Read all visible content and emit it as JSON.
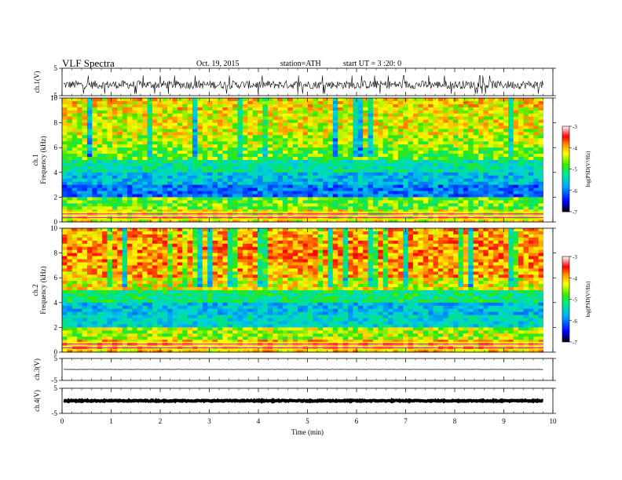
{
  "header": {
    "title": "VLF Spectra",
    "date": "Oct. 19, 2015",
    "station": "station=ATH",
    "start": "start  UT =   3  :20: 0"
  },
  "chart_data": [
    {
      "type": "line",
      "panel": "ch1-waveform",
      "ylabel": "ch.1(V)",
      "ylim": [
        -5,
        5
      ],
      "yticks": [
        "5",
        "-5"
      ],
      "xlim": [
        0,
        10
      ],
      "trace_span_min": [
        0,
        9.8
      ],
      "series": [
        {
          "values_note_level_V": -1.0,
          "amplitude_V": 1.5,
          "color": "#000000"
        }
      ]
    },
    {
      "type": "heatmap",
      "panel": "ch1-spectrogram",
      "ylabel_line1": "ch.1",
      "ylabel_line2": "Frequency (kHz)",
      "ylim": [
        0,
        10
      ],
      "yticks": [
        "0",
        "2",
        "4",
        "6",
        "8",
        "10"
      ],
      "xlim": [
        0,
        10
      ],
      "frequency_kHz": [
        0.5,
        1.5,
        2.5,
        3.5,
        4.5,
        5.5,
        6.5,
        7.5,
        8.5,
        9.5
      ],
      "typical_logPSD": [
        -4.2,
        -4.6,
        -6.0,
        -5.6,
        -5.2,
        -4.6,
        -4.4,
        -4.2,
        -4.2,
        -4.1
      ],
      "colorbar": {
        "label": "log(PSD(V²/Hz)",
        "range": [
          -7,
          -3
        ],
        "ticks": [
          "-3",
          "-4",
          "-5",
          "-6",
          "-7"
        ]
      }
    },
    {
      "type": "heatmap",
      "panel": "ch2-spectrogram",
      "ylabel_line1": "ch.2",
      "ylabel_line2": "Frequency (kHz)",
      "ylim": [
        0,
        10
      ],
      "yticks": [
        "0",
        "2",
        "4",
        "6",
        "8",
        "10"
      ],
      "xlim": [
        0,
        10
      ],
      "frequency_kHz": [
        0.5,
        1.5,
        2.5,
        3.5,
        4.5,
        5.5,
        6.5,
        7.5,
        8.5,
        9.5
      ],
      "typical_logPSD": [
        -4.0,
        -4.4,
        -5.4,
        -5.6,
        -5.0,
        -4.2,
        -3.9,
        -3.8,
        -3.8,
        -3.9
      ],
      "colorbar": {
        "label": "log(PSD(V²/Hz)",
        "range": [
          -7,
          -3
        ],
        "ticks": [
          "-3",
          "-4",
          "-5",
          "-6",
          "-7"
        ]
      }
    },
    {
      "type": "line",
      "panel": "ch3-waveform",
      "ylabel": "ch.3(V)",
      "ylim": [
        -5,
        5
      ],
      "yticks": [
        "5",
        "-5"
      ],
      "xlim": [
        0,
        10
      ],
      "trace_span_min": [
        0,
        9.8
      ],
      "series": [
        {
          "values_note_level_V": 0.0,
          "amplitude_V": 0.05,
          "color": "#000000"
        }
      ]
    },
    {
      "type": "line",
      "panel": "ch4-waveform",
      "ylabel": "ch.4(V)",
      "ylim": [
        -5,
        5
      ],
      "yticks": [
        "5",
        "-5"
      ],
      "xlim": [
        0,
        10
      ],
      "xlabel": "Time  (min)",
      "xticks": [
        "0",
        "1",
        "2",
        "3",
        "4",
        "5",
        "6",
        "7",
        "8",
        "9",
        "10"
      ],
      "trace_span_min": [
        0,
        9.8
      ],
      "series": [
        {
          "values_note_level_V": 0.0,
          "amplitude_V": 0.2,
          "color": "#000000"
        }
      ]
    }
  ]
}
